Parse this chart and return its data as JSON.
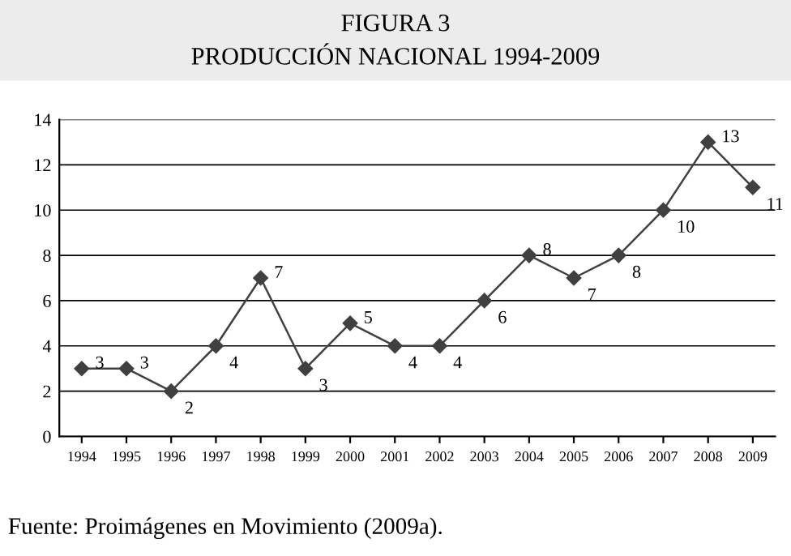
{
  "chart_data": {
    "type": "line",
    "title": "FIGURA 3",
    "subtitle": "PRODUCCIÓN NACIONAL 1994-2009",
    "categories": [
      "1994",
      "1995",
      "1996",
      "1997",
      "1998",
      "1999",
      "2000",
      "2001",
      "2002",
      "2003",
      "2004",
      "2005",
      "2006",
      "2007",
      "2008",
      "2009"
    ],
    "values": [
      3,
      3,
      2,
      4,
      7,
      3,
      5,
      4,
      4,
      6,
      8,
      7,
      8,
      10,
      13,
      11
    ],
    "color": "#404040",
    "marker": "diamond",
    "line_style": "solid",
    "ylim": [
      0,
      14
    ],
    "yticks": [
      0,
      2,
      4,
      6,
      8,
      10,
      12,
      14
    ],
    "grid": "y",
    "data_labels": true,
    "legend": false,
    "annotations": [
      "Fuente: Proimágenes en Movimiento (2009a)."
    ]
  }
}
